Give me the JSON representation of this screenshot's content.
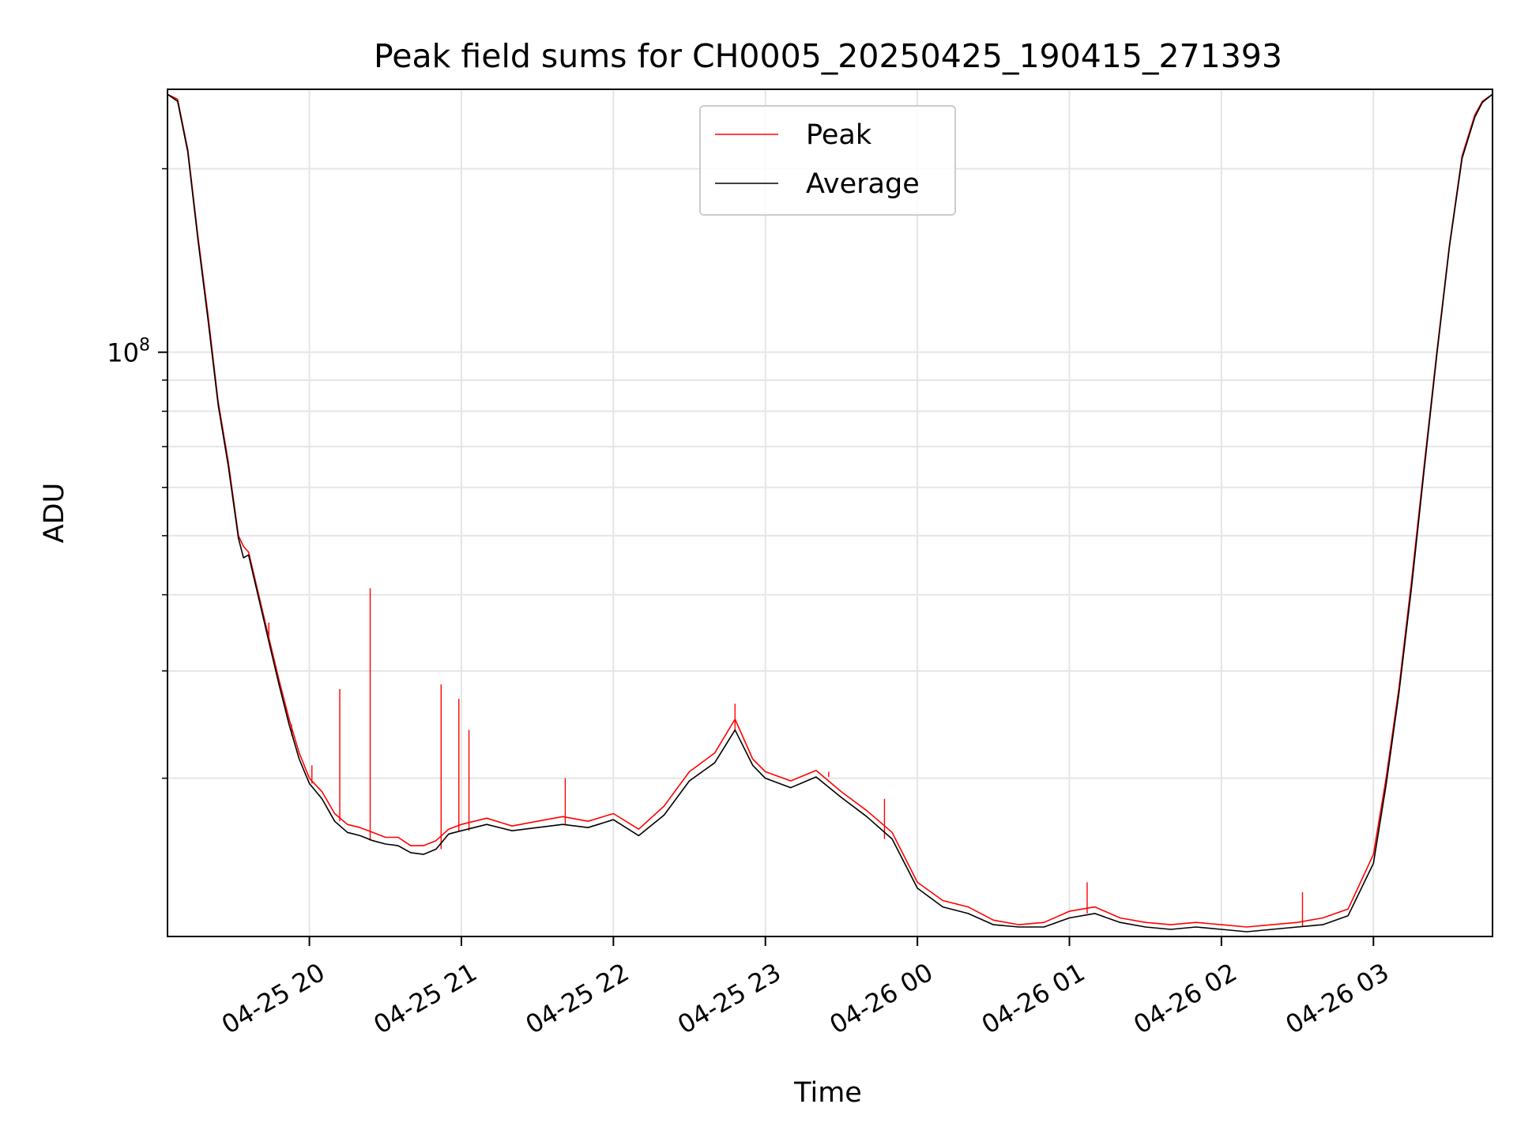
{
  "chart_data": {
    "type": "line",
    "title": "Peak field sums for CH0005_20250425_190415_271393",
    "xlabel": "Time",
    "ylabel": "ADU",
    "yscale": "log",
    "x_unit": "time",
    "xlim": [
      "04-25 19:04",
      "04-26 03:47"
    ],
    "ylim": [
      11000000,
      270000000
    ],
    "x_ticks": [
      {
        "t": "04-25 20:00",
        "label": "04-25 20"
      },
      {
        "t": "04-25 21:00",
        "label": "04-25 21"
      },
      {
        "t": "04-25 22:00",
        "label": "04-25 22"
      },
      {
        "t": "04-25 23:00",
        "label": "04-25 23"
      },
      {
        "t": "04-26 00:00",
        "label": "04-26 00"
      },
      {
        "t": "04-26 01:00",
        "label": "04-26 01"
      },
      {
        "t": "04-26 02:00",
        "label": "04-26 02"
      },
      {
        "t": "04-26 03:00",
        "label": "04-26 03"
      }
    ],
    "y_major_ticks": [
      {
        "value": 100000000,
        "base": "10",
        "exp": "8"
      }
    ],
    "y_minor_ticks": [
      20000000,
      30000000,
      40000000,
      50000000,
      60000000,
      70000000,
      80000000,
      90000000,
      200000000
    ],
    "grid": true,
    "legend_position": "upper center",
    "series": [
      {
        "name": "Peak",
        "color": "#ff0000",
        "x": [
          "04-25 19:04",
          "04-25 19:08",
          "04-25 19:12",
          "04-25 19:16",
          "04-25 19:20",
          "04-25 19:24",
          "04-25 19:28",
          "04-25 19:32",
          "04-25 19:34",
          "04-25 19:36",
          "04-25 19:40",
          "04-25 19:44",
          "04-25 19:48",
          "04-25 19:52",
          "04-25 19:56",
          "04-25 20:00",
          "04-25 20:05",
          "04-25 20:10",
          "04-25 20:15",
          "04-25 20:20",
          "04-25 20:25",
          "04-25 20:30",
          "04-25 20:35",
          "04-25 20:40",
          "04-25 20:45",
          "04-25 20:50",
          "04-25 20:55",
          "04-25 21:00",
          "04-25 21:10",
          "04-25 21:20",
          "04-25 21:30",
          "04-25 21:40",
          "04-25 21:50",
          "04-25 22:00",
          "04-25 22:10",
          "04-25 22:20",
          "04-25 22:30",
          "04-25 22:40",
          "04-25 22:48",
          "04-25 22:55",
          "04-25 23:00",
          "04-25 23:10",
          "04-25 23:20",
          "04-25 23:30",
          "04-25 23:40",
          "04-25 23:50",
          "04-26 00:00",
          "04-26 00:10",
          "04-26 00:20",
          "04-26 00:30",
          "04-26 00:40",
          "04-26 00:50",
          "04-26 01:00",
          "04-26 01:10",
          "04-26 01:20",
          "04-26 01:30",
          "04-26 01:40",
          "04-26 01:50",
          "04-26 02:00",
          "04-26 02:10",
          "04-26 02:20",
          "04-26 02:30",
          "04-26 02:40",
          "04-26 02:50",
          "04-26 03:00",
          "04-26 03:05",
          "04-26 03:10",
          "04-26 03:15",
          "04-26 03:20",
          "04-26 03:25",
          "04-26 03:30",
          "04-26 03:35",
          "04-26 03:40",
          "04-26 03:43",
          "04-26 03:47"
        ],
        "y": [
          265000000,
          260000000,
          215000000,
          155000000,
          115000000,
          83000000,
          66000000,
          50000000,
          48000000,
          47000000,
          40000000,
          34000000,
          29000000,
          25000000,
          22000000,
          20000000,
          19000000,
          17500000,
          16800000,
          16600000,
          16300000,
          16000000,
          16000000,
          15500000,
          15500000,
          15800000,
          16500000,
          16800000,
          17200000,
          16700000,
          17000000,
          17300000,
          17000000,
          17500000,
          16500000,
          18000000,
          20500000,
          22000000,
          25000000,
          21500000,
          20500000,
          19800000,
          20600000,
          19000000,
          17700000,
          16300000,
          13500000,
          12600000,
          12300000,
          11700000,
          11500000,
          11600000,
          12100000,
          12300000,
          11800000,
          11600000,
          11500000,
          11600000,
          11500000,
          11400000,
          11500000,
          11600000,
          11800000,
          12200000,
          15000000,
          20000000,
          28000000,
          42000000,
          65000000,
          100000000,
          150000000,
          210000000,
          245000000,
          258000000,
          265000000
        ],
        "spikes": [
          {
            "t": "04-25 19:44",
            "y": 36000000
          },
          {
            "t": "04-25 19:53",
            "y": 23500000
          },
          {
            "t": "04-25 20:01",
            "y": 21000000
          },
          {
            "t": "04-25 20:12",
            "y": 28000000
          },
          {
            "t": "04-25 20:24",
            "y": 41000000
          },
          {
            "t": "04-25 20:52",
            "y": 28500000
          },
          {
            "t": "04-25 20:59",
            "y": 27000000
          },
          {
            "t": "04-25 21:03",
            "y": 24000000
          },
          {
            "t": "04-25 21:41",
            "y": 20000000
          },
          {
            "t": "04-25 22:48",
            "y": 26500000
          },
          {
            "t": "04-25 23:25",
            "y": 20500000
          },
          {
            "t": "04-25 23:47",
            "y": 18500000
          },
          {
            "t": "04-26 01:07",
            "y": 13500000
          },
          {
            "t": "04-26 02:32",
            "y": 13000000
          }
        ]
      },
      {
        "name": "Average",
        "color": "#000000",
        "x": [
          "04-25 19:04",
          "04-25 19:08",
          "04-25 19:12",
          "04-25 19:16",
          "04-25 19:20",
          "04-25 19:24",
          "04-25 19:28",
          "04-25 19:32",
          "04-25 19:34",
          "04-25 19:36",
          "04-25 19:40",
          "04-25 19:44",
          "04-25 19:48",
          "04-25 19:52",
          "04-25 19:56",
          "04-25 20:00",
          "04-25 20:05",
          "04-25 20:10",
          "04-25 20:15",
          "04-25 20:20",
          "04-25 20:25",
          "04-25 20:30",
          "04-25 20:35",
          "04-25 20:40",
          "04-25 20:45",
          "04-25 20:50",
          "04-25 20:55",
          "04-25 21:00",
          "04-25 21:10",
          "04-25 21:20",
          "04-25 21:30",
          "04-25 21:40",
          "04-25 21:50",
          "04-25 22:00",
          "04-25 22:10",
          "04-25 22:20",
          "04-25 22:30",
          "04-25 22:40",
          "04-25 22:48",
          "04-25 22:55",
          "04-25 23:00",
          "04-25 23:10",
          "04-25 23:20",
          "04-25 23:30",
          "04-25 23:40",
          "04-25 23:50",
          "04-26 00:00",
          "04-26 00:10",
          "04-26 00:20",
          "04-26 00:30",
          "04-26 00:40",
          "04-26 00:50",
          "04-26 01:00",
          "04-26 01:10",
          "04-26 01:20",
          "04-26 01:30",
          "04-26 01:40",
          "04-26 01:50",
          "04-26 02:00",
          "04-26 02:10",
          "04-26 02:20",
          "04-26 02:30",
          "04-26 02:40",
          "04-26 02:50",
          "04-26 03:00",
          "04-26 03:05",
          "04-26 03:10",
          "04-26 03:15",
          "04-26 03:20",
          "04-26 03:25",
          "04-26 03:30",
          "04-26 03:35",
          "04-26 03:40",
          "04-26 03:43",
          "04-26 03:47"
        ],
        "y": [
          265000000,
          258000000,
          213000000,
          153000000,
          113000000,
          82000000,
          65000000,
          49500000,
          46000000,
          46500000,
          39500000,
          33500000,
          28500000,
          24500000,
          21500000,
          19600000,
          18500000,
          17000000,
          16300000,
          16100000,
          15800000,
          15600000,
          15500000,
          15100000,
          15000000,
          15300000,
          16200000,
          16400000,
          16800000,
          16400000,
          16600000,
          16800000,
          16600000,
          17100000,
          16100000,
          17400000,
          19800000,
          21200000,
          24000000,
          21000000,
          20000000,
          19300000,
          20100000,
          18600000,
          17300000,
          15900000,
          13200000,
          12300000,
          12000000,
          11500000,
          11400000,
          11400000,
          11800000,
          12000000,
          11600000,
          11400000,
          11300000,
          11400000,
          11300000,
          11200000,
          11300000,
          11400000,
          11500000,
          11900000,
          14500000,
          19500000,
          27500000,
          41000000,
          64000000,
          99000000,
          149000000,
          208000000,
          243000000,
          257000000,
          265000000
        ]
      }
    ]
  }
}
